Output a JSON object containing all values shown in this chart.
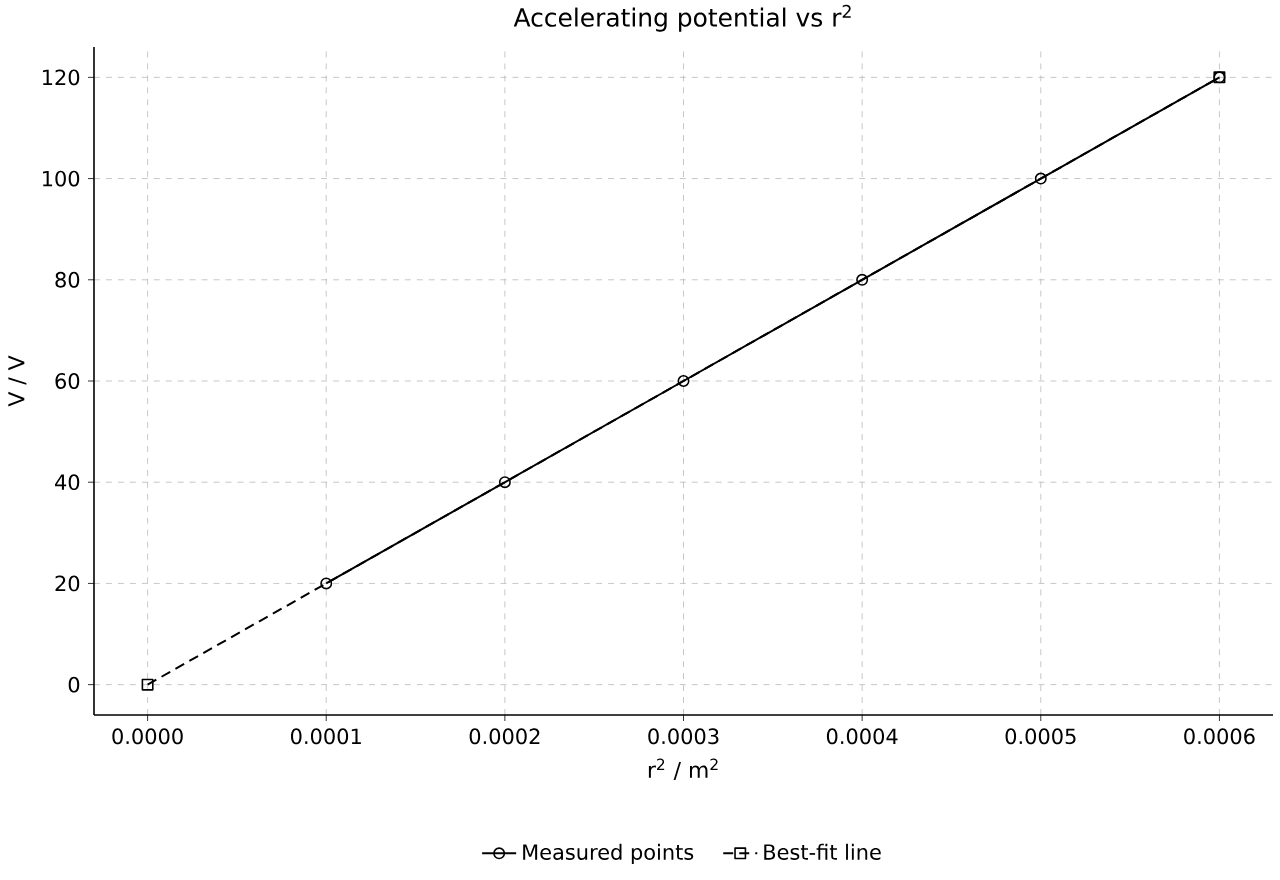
{
  "chart_data": {
    "type": "line",
    "title": "Accelerating potential vs r$^{2}$",
    "xlabel": "r$^{2}$ / m$^{2}$",
    "ylabel": "V / V",
    "series": [
      {
        "name": "Measured points",
        "color": "#000000",
        "x": [
          0.0001,
          0.0002,
          0.0003,
          0.0004,
          0.0005,
          0.0006
        ],
        "values": [
          20,
          40,
          60,
          80,
          100,
          120
        ],
        "marker": "circle",
        "line_style": "solid"
      },
      {
        "name": "Best-fit line",
        "color": "#000000",
        "x": [
          0,
          0.0006
        ],
        "values": [
          0,
          120
        ],
        "marker": "square",
        "line_style": "dashed"
      }
    ],
    "xlim": [
      -3e-05,
      0.00063
    ],
    "ylim": [
      -6,
      126
    ],
    "xticks": [
      {
        "value": 0,
        "label": "0.0000"
      },
      {
        "value": 0.0001,
        "label": "0.0001"
      },
      {
        "value": 0.0002,
        "label": "0.0002"
      },
      {
        "value": 0.0003,
        "label": "0.0003"
      },
      {
        "value": 0.0004,
        "label": "0.0004"
      },
      {
        "value": 0.0005,
        "label": "0.0005"
      },
      {
        "value": 0.0006,
        "label": "0.0006"
      }
    ],
    "yticks": [
      0,
      20,
      40,
      60,
      80,
      100,
      120
    ],
    "grid": true,
    "legend": "bottom"
  }
}
